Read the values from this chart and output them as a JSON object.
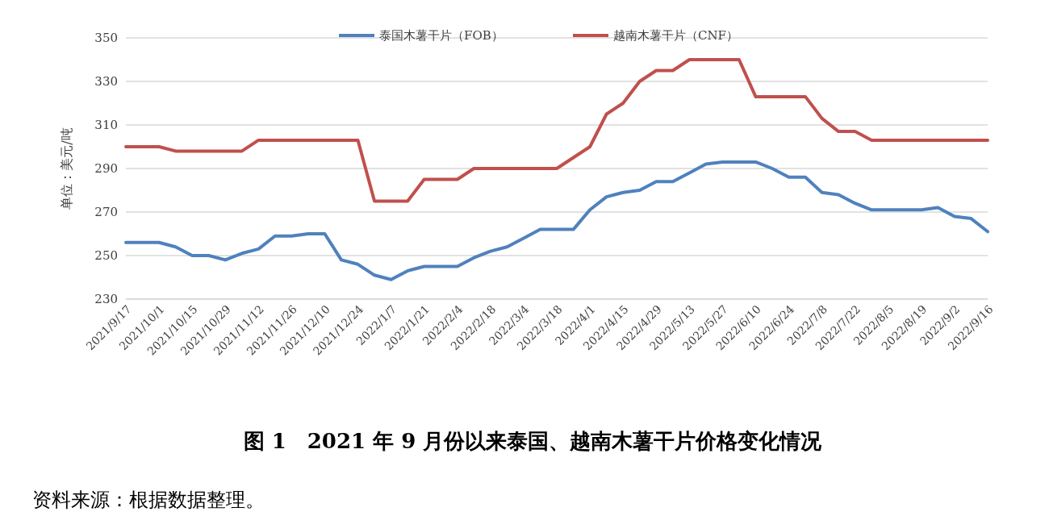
{
  "chart_data": {
    "type": "line",
    "title": "图 1　2021 年 9 月份以来泰国、越南木薯干片价格变化情况",
    "ylabel": "单位：美元/吨",
    "annotations": [
      "资料来源：根据数据整理。"
    ],
    "categories": [
      "2021/9/17",
      null,
      "2021/10/1",
      null,
      "2021/10/15",
      null,
      "2021/10/29",
      null,
      "2021/11/12",
      null,
      "2021/11/26",
      null,
      "2021/12/10",
      null,
      "2021/12/24",
      null,
      "2022/1/7",
      null,
      "2022/1/21",
      null,
      "2022/2/4",
      null,
      "2022/2/18",
      null,
      "2022/3/4",
      null,
      "2022/3/18",
      null,
      "2022/4/1",
      null,
      "2022/4/15",
      null,
      "2022/4/29",
      null,
      "2022/5/13",
      null,
      "2022/5/27",
      null,
      "2022/6/10",
      null,
      "2022/6/24",
      null,
      "2022/7/8",
      null,
      "2022/7/22",
      null,
      "2022/8/5",
      null,
      "2022/8/19",
      null,
      "2022/9/2",
      null,
      "2022/9/16"
    ],
    "series": [
      {
        "name": "泰国木薯干片（FOB）",
        "color": "#4f81bd",
        "values": [
          256,
          256,
          256,
          254,
          250,
          250,
          248,
          251,
          253,
          259,
          259,
          260,
          260,
          248,
          246,
          241,
          239,
          243,
          245,
          245,
          245,
          249,
          252,
          254,
          258,
          262,
          262,
          262,
          271,
          277,
          279,
          280,
          284,
          284,
          288,
          292,
          293,
          293,
          293,
          290,
          286,
          286,
          279,
          278,
          274,
          271,
          271,
          271,
          271,
          272,
          268,
          267,
          261
        ]
      },
      {
        "name": "越南木薯干片（CNF）",
        "color": "#c0504d",
        "values": [
          300,
          300,
          300,
          298,
          298,
          298,
          298,
          298,
          303,
          303,
          303,
          303,
          303,
          303,
          303,
          275,
          275,
          275,
          285,
          285,
          285,
          290,
          290,
          290,
          290,
          290,
          290,
          295,
          300,
          315,
          320,
          330,
          335,
          335,
          340,
          340,
          340,
          340,
          323,
          323,
          323,
          323,
          313,
          307,
          307,
          303,
          303,
          303,
          303,
          303,
          303,
          303,
          303
        ]
      }
    ],
    "ylim": [
      230,
      350
    ],
    "yticks": [
      230,
      250,
      270,
      290,
      310,
      330,
      350
    ],
    "grid": "y",
    "legend": "top",
    "marker": "none",
    "line_style": "solid"
  }
}
